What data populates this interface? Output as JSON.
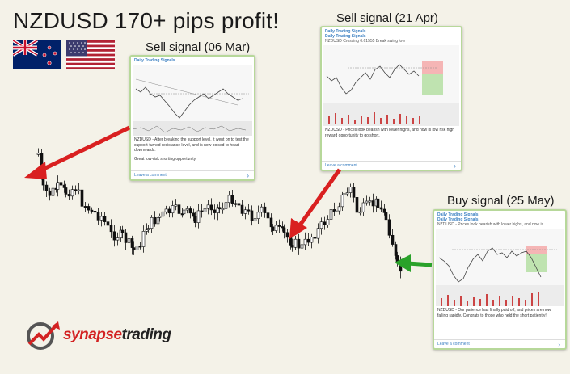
{
  "headline": "NZDUSD 170+ pips profit!",
  "signals": {
    "sell1_label": "Sell signal (06 Mar)",
    "sell2_label": "Sell signal (21 Apr)",
    "buy_label": "Buy signal (25 May)"
  },
  "card1": {
    "title": "Daily Trading Signals",
    "text1": "NZDUSD - After breaking the support level, it went on to test the support-turned-resistance level, and is now poised to head downwards.",
    "text2": "Great low-risk shorting opportunity.",
    "comment": "Leave a comment"
  },
  "card2": {
    "title": "Daily Trading Signals",
    "subtitle": "Daily Trading Signals",
    "line": "NZDUSD Crossing 0.61555 Break swing low",
    "text1": "NZDUSD - Prices look bearish with lower highs, and now is low risk high reward opportunity to go short.",
    "comment": "Leave a comment"
  },
  "card3": {
    "title": "Daily Trading Signals",
    "subtitle": "Daily Trading Signals",
    "line": "NZDUSD - Prices look bearish with lower highs, and now is...",
    "text1": "NZDUSD - Our patience has finally paid off, and prices are now falling rapidly. Congrats to those who held the short patiently!",
    "comment": "Leave a comment"
  },
  "logo": {
    "prefix": "synapse",
    "suffix": "trading"
  },
  "colors": {
    "background": "#f4f2e8",
    "sell_arrow": "#d92020",
    "buy_arrow": "#2aa22a",
    "card_border": "#b7d89a"
  }
}
